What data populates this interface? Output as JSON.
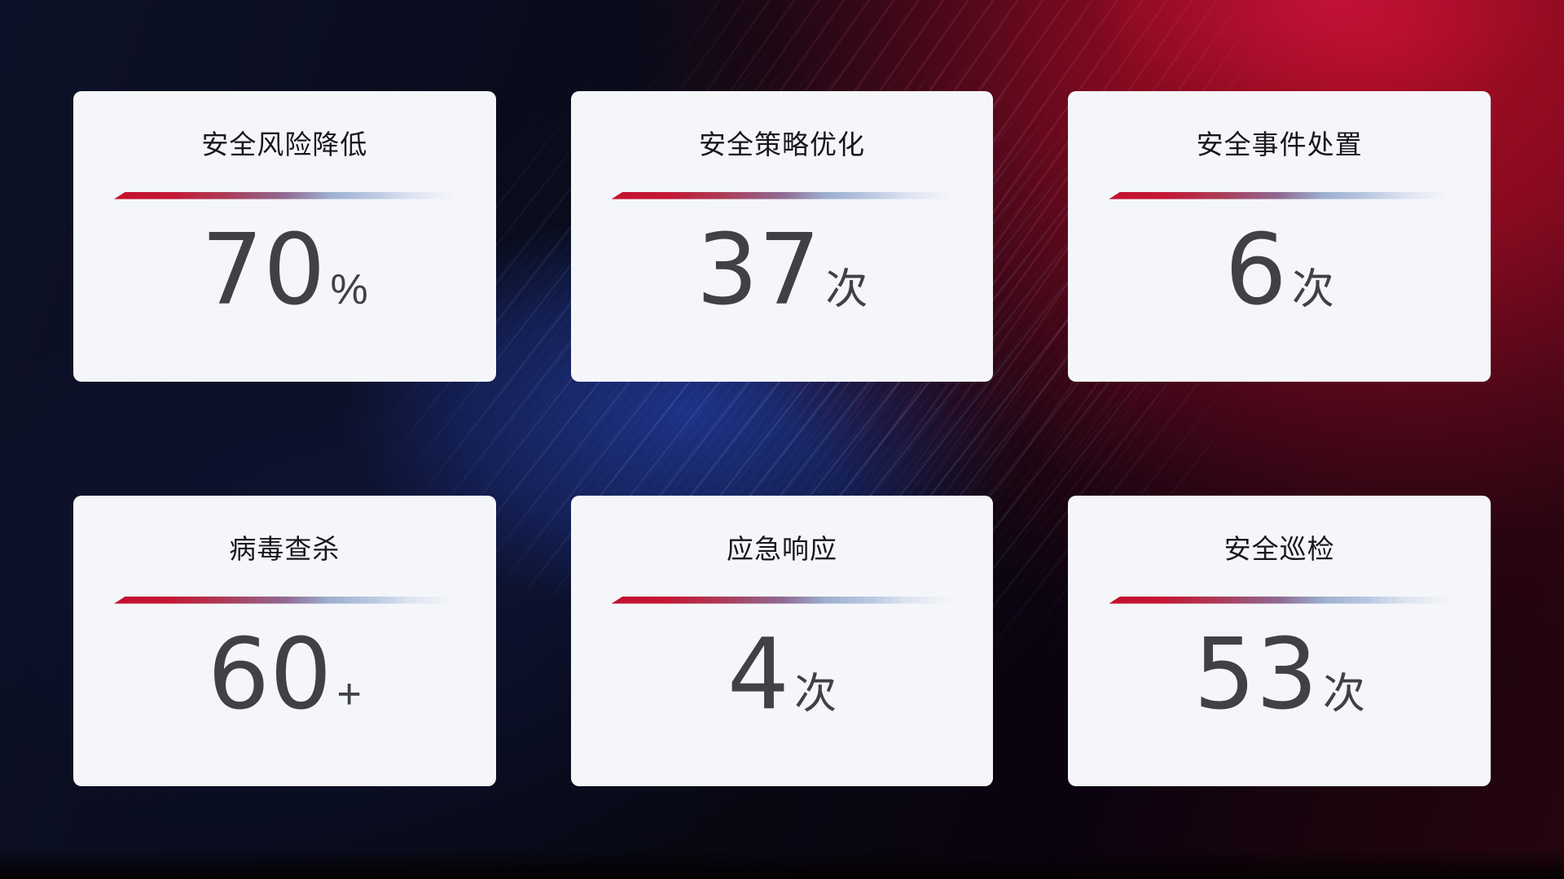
{
  "cards": [
    {
      "title": "安全风险降低",
      "value": "70",
      "unit": "%"
    },
    {
      "title": "安全策略优化",
      "value": "37",
      "unit": "次"
    },
    {
      "title": "安全事件处置",
      "value": "6",
      "unit": "次"
    },
    {
      "title": "病毒查杀",
      "value": "60",
      "unit": "+"
    },
    {
      "title": "应急响应",
      "value": "4",
      "unit": "次"
    },
    {
      "title": "安全巡检",
      "value": "53",
      "unit": "次"
    }
  ],
  "colors": {
    "card_background": "#f5f6fa",
    "title_text": "#17181c",
    "metric_text": "#3f4146",
    "divider_gradient_start_red": "#c5102d",
    "divider_gradient_mid_mauve": "#8f6a92",
    "divider_gradient_end_blue": "#bac8e1",
    "background_navy": "#0d1126",
    "background_blue_glow": "#1f3488",
    "background_red_glow": "#b00d26"
  }
}
